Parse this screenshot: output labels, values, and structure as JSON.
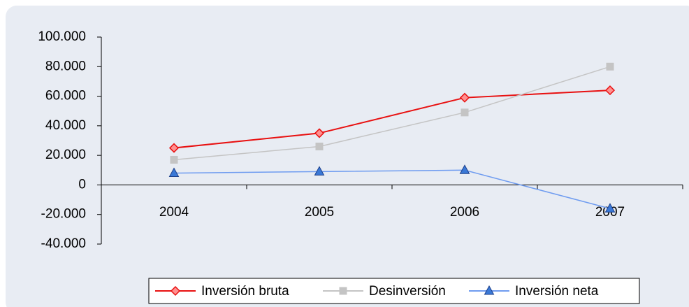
{
  "chart_data": {
    "type": "line",
    "categories": [
      "2004",
      "2005",
      "2006",
      "2007"
    ],
    "series": [
      {
        "name": "Inversión bruta",
        "color": "#e81010",
        "marker": "diamond",
        "values": [
          25000,
          35000,
          59000,
          64000
        ]
      },
      {
        "name": "Desinversión",
        "color": "#c4c4c4",
        "marker": "square",
        "values": [
          17000,
          26000,
          49000,
          80000
        ]
      },
      {
        "name": "Inversión neta",
        "color": "#6f9cf0",
        "marker": "triangle",
        "values": [
          8000,
          9000,
          10000,
          -16000
        ]
      }
    ],
    "ylim": [
      -40000,
      100000
    ],
    "yticks": [
      {
        "value": -40000,
        "label": "-40.000"
      },
      {
        "value": -20000,
        "label": "-20.000"
      },
      0,
      {
        "value": 20000,
        "label": "20.000"
      },
      {
        "value": 40000,
        "label": "40.000"
      },
      {
        "value": 60000,
        "label": "60.000"
      },
      {
        "value": 80000,
        "label": "80.000"
      },
      {
        "value": 100000,
        "label": "100.000"
      }
    ],
    "grid": false,
    "legend": "bottom"
  }
}
